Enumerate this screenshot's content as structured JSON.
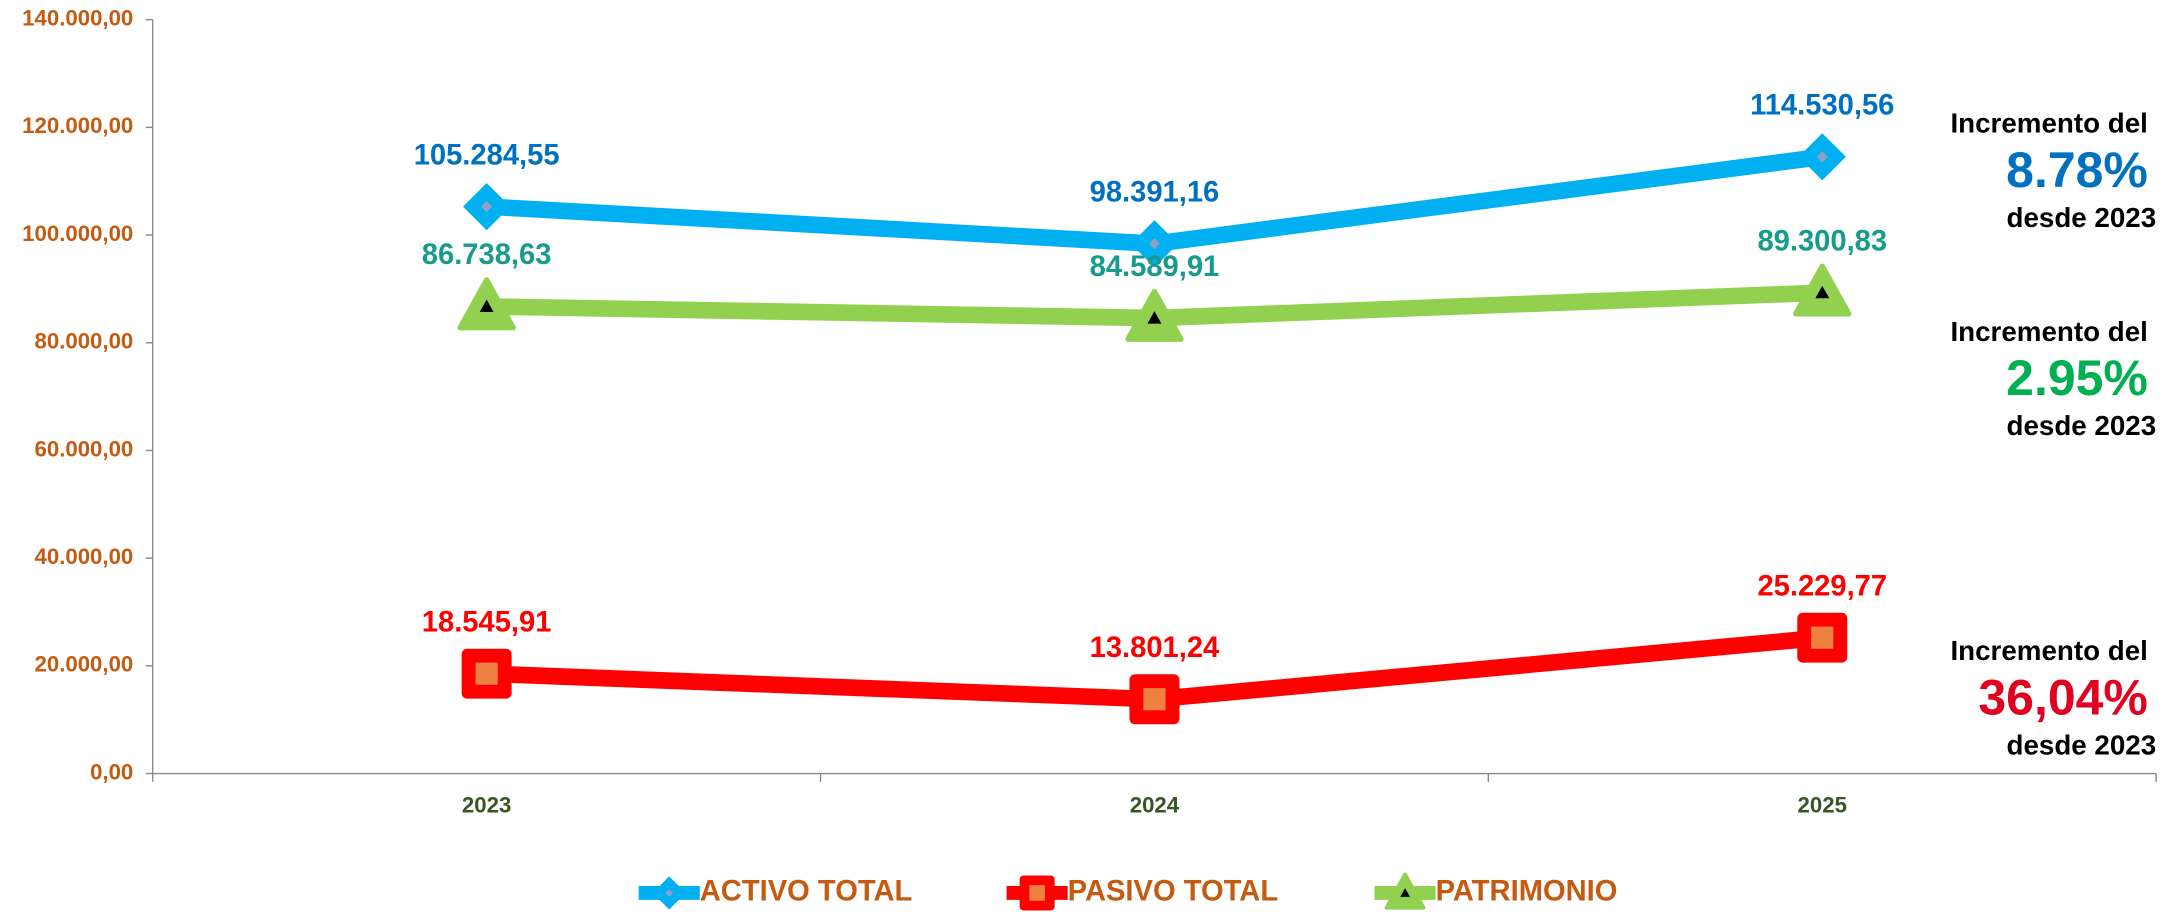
{
  "chart_data": {
    "type": "line",
    "categories": [
      "2023",
      "2024",
      "2025"
    ],
    "ylim": [
      0,
      140000
    ],
    "yticks": [
      {
        "value": 0,
        "label": "0,00"
      },
      {
        "value": 20000,
        "label": "20.000,00"
      },
      {
        "value": 40000,
        "label": "40.000,00"
      },
      {
        "value": 60000,
        "label": "60.000,00"
      },
      {
        "value": 80000,
        "label": "80.000,00"
      },
      {
        "value": 100000,
        "label": "100.000,00"
      },
      {
        "value": 120000,
        "label": "120.000,00"
      },
      {
        "value": 140000,
        "label": "140.000,00"
      }
    ],
    "series": [
      {
        "name": "ACTIVO TOTAL",
        "color": "#00b0f0",
        "label_color": "#0070c0",
        "marker": "diamond",
        "values": [
          105284.55,
          98391.16,
          114530.56
        ],
        "value_labels": [
          "105.284,55",
          "98.391,16",
          "114.530,56"
        ]
      },
      {
        "name": "PASIVO TOTAL",
        "color": "#ff0000",
        "label_color": "#ff0000",
        "marker": "square",
        "values": [
          18545.91,
          13801.24,
          25229.77
        ],
        "value_labels": [
          "18.545,91",
          "13.801,24",
          "25.229,77"
        ]
      },
      {
        "name": "PATRIMONIO",
        "color": "#92d050",
        "label_color": "#169b8c",
        "marker": "triangle",
        "values": [
          86738.63,
          84589.91,
          89300.83
        ],
        "value_labels": [
          "86.738,63",
          "84.589,91",
          "89.300,83"
        ]
      }
    ],
    "annotations": [
      {
        "prefix": "Incremento del",
        "value": "8.78%",
        "suffix": "desde 2023",
        "color": "#0070c0"
      },
      {
        "prefix": "Incremento del",
        "value": "2.95%",
        "suffix": "desde 2023",
        "color": "#00b050"
      },
      {
        "prefix": "Incremento del",
        "value": "36,04%",
        "suffix": "desde 2023",
        "color": "#e00020"
      }
    ],
    "legend": "bottom"
  }
}
